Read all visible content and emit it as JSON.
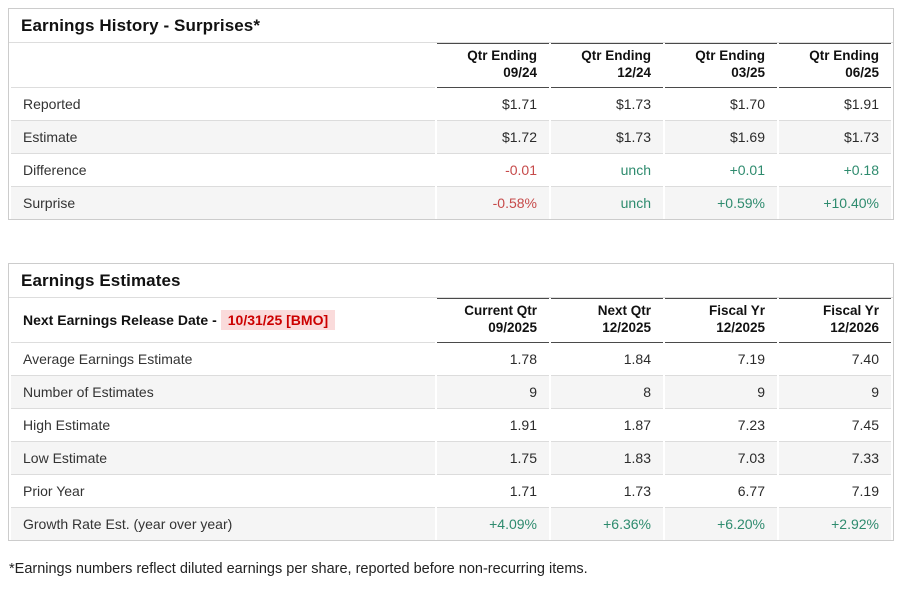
{
  "page": {
    "footnote": "*Earnings numbers reflect diluted earnings per share, reported before non-recurring items."
  },
  "colors": {
    "positive": "#2e8b6e",
    "negative": "#c64a4a",
    "release_date_text": "#cc0000",
    "release_date_bg": "#fadbdb",
    "row_stripe": "#f5f5f5",
    "border_light": "#dddddd",
    "border_dark": "#4a4a4a"
  },
  "history": {
    "title": "Earnings History - Surprises*",
    "columns": [
      {
        "line1": "Qtr Ending",
        "line2": "09/24"
      },
      {
        "line1": "Qtr Ending",
        "line2": "12/24"
      },
      {
        "line1": "Qtr Ending",
        "line2": "03/25"
      },
      {
        "line1": "Qtr Ending",
        "line2": "06/25"
      }
    ],
    "rows": [
      {
        "label": "Reported",
        "values": [
          "$1.71",
          "$1.73",
          "$1.70",
          "$1.91"
        ],
        "tones": [
          "",
          "",
          "",
          ""
        ]
      },
      {
        "label": "Estimate",
        "values": [
          "$1.72",
          "$1.73",
          "$1.69",
          "$1.73"
        ],
        "tones": [
          "",
          "",
          "",
          ""
        ]
      },
      {
        "label": "Difference",
        "values": [
          "-0.01",
          "unch",
          "+0.01",
          "+0.18"
        ],
        "tones": [
          "neg",
          "pos",
          "pos",
          "pos"
        ]
      },
      {
        "label": "Surprise",
        "values": [
          "-0.58%",
          "unch",
          "+0.59%",
          "+10.40%"
        ],
        "tones": [
          "neg",
          "pos",
          "pos",
          "pos"
        ]
      }
    ]
  },
  "estimates": {
    "title": "Earnings Estimates",
    "release_label": "Next Earnings Release Date -",
    "release_date": "10/31/25 [BMO]",
    "columns": [
      {
        "line1": "Current Qtr",
        "line2": "09/2025"
      },
      {
        "line1": "Next Qtr",
        "line2": "12/2025"
      },
      {
        "line1": "Fiscal Yr",
        "line2": "12/2025"
      },
      {
        "line1": "Fiscal Yr",
        "line2": "12/2026"
      }
    ],
    "rows": [
      {
        "label": "Average Earnings Estimate",
        "values": [
          "1.78",
          "1.84",
          "7.19",
          "7.40"
        ],
        "tones": [
          "",
          "",
          "",
          ""
        ]
      },
      {
        "label": "Number of Estimates",
        "values": [
          "9",
          "8",
          "9",
          "9"
        ],
        "tones": [
          "",
          "",
          "",
          ""
        ]
      },
      {
        "label": "High Estimate",
        "values": [
          "1.91",
          "1.87",
          "7.23",
          "7.45"
        ],
        "tones": [
          "",
          "",
          "",
          ""
        ]
      },
      {
        "label": "Low Estimate",
        "values": [
          "1.75",
          "1.83",
          "7.03",
          "7.33"
        ],
        "tones": [
          "",
          "",
          "",
          ""
        ]
      },
      {
        "label": "Prior Year",
        "values": [
          "1.71",
          "1.73",
          "6.77",
          "7.19"
        ],
        "tones": [
          "",
          "",
          "",
          ""
        ]
      },
      {
        "label": "Growth Rate Est. (year over year)",
        "values": [
          "+4.09%",
          "+6.36%",
          "+6.20%",
          "+2.92%"
        ],
        "tones": [
          "pos",
          "pos",
          "pos",
          "pos"
        ]
      }
    ]
  }
}
